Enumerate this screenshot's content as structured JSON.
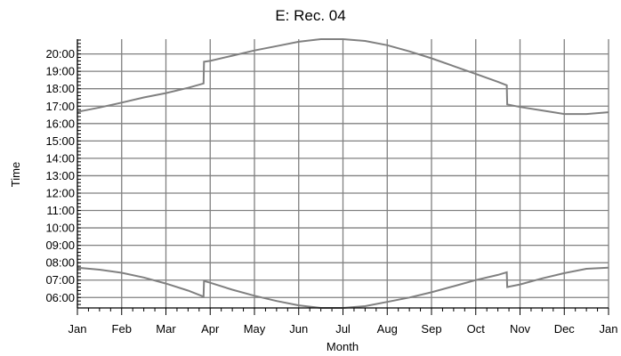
{
  "chart_data": {
    "type": "line",
    "title": "E: Rec. 04",
    "xlabel": "Month",
    "ylabel": "Time",
    "x_categories": [
      "Jan",
      "Feb",
      "Mar",
      "Apr",
      "May",
      "Jun",
      "Jul",
      "Aug",
      "Sep",
      "Oct",
      "Nov",
      "Dec",
      "Jan"
    ],
    "y_ticks": [
      "06:00",
      "07:00",
      "08:00",
      "09:00",
      "10:00",
      "11:00",
      "12:00",
      "13:00",
      "14:00",
      "15:00",
      "16:00",
      "17:00",
      "18:00",
      "19:00",
      "20:00"
    ],
    "ylim": [
      5.4,
      20.85
    ],
    "grid": true,
    "line_color": "#808080",
    "series": [
      {
        "points": [
          [
            0.0,
            16.67
          ],
          [
            0.5,
            16.92
          ],
          [
            1.0,
            17.2
          ],
          [
            1.5,
            17.5
          ],
          [
            2.0,
            17.75
          ],
          [
            2.5,
            18.05
          ],
          [
            2.85,
            18.3
          ],
          [
            2.86,
            19.55
          ],
          [
            3.0,
            19.6
          ],
          [
            3.5,
            19.9
          ],
          [
            4.0,
            20.2
          ],
          [
            4.5,
            20.45
          ],
          [
            5.0,
            20.7
          ],
          [
            5.5,
            20.85
          ],
          [
            6.0,
            20.85
          ],
          [
            6.5,
            20.75
          ],
          [
            7.0,
            20.5
          ],
          [
            7.5,
            20.15
          ],
          [
            8.0,
            19.75
          ],
          [
            8.5,
            19.3
          ],
          [
            9.0,
            18.85
          ],
          [
            9.5,
            18.4
          ],
          [
            9.7,
            18.2
          ],
          [
            9.71,
            17.1
          ],
          [
            10.0,
            16.95
          ],
          [
            10.5,
            16.75
          ],
          [
            11.0,
            16.55
          ],
          [
            11.5,
            16.55
          ],
          [
            12.0,
            16.65
          ]
        ]
      },
      {
        "points": [
          [
            0.0,
            7.72
          ],
          [
            0.5,
            7.6
          ],
          [
            1.0,
            7.42
          ],
          [
            1.5,
            7.15
          ],
          [
            2.0,
            6.8
          ],
          [
            2.5,
            6.4
          ],
          [
            2.85,
            6.05
          ],
          [
            2.86,
            6.95
          ],
          [
            3.0,
            6.85
          ],
          [
            3.5,
            6.45
          ],
          [
            4.0,
            6.1
          ],
          [
            4.5,
            5.8
          ],
          [
            5.0,
            5.55
          ],
          [
            5.5,
            5.4
          ],
          [
            6.0,
            5.4
          ],
          [
            6.5,
            5.5
          ],
          [
            7.0,
            5.75
          ],
          [
            7.5,
            6.0
          ],
          [
            8.0,
            6.3
          ],
          [
            8.5,
            6.65
          ],
          [
            9.0,
            7.0
          ],
          [
            9.5,
            7.3
          ],
          [
            9.7,
            7.45
          ],
          [
            9.71,
            6.6
          ],
          [
            10.0,
            6.75
          ],
          [
            10.5,
            7.1
          ],
          [
            11.0,
            7.4
          ],
          [
            11.5,
            7.65
          ],
          [
            12.0,
            7.72
          ]
        ]
      }
    ]
  }
}
